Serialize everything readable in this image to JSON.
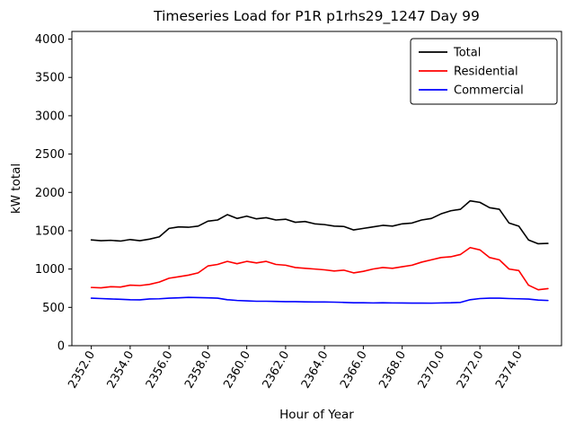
{
  "chart_data": {
    "type": "line",
    "title": "Timeseries Load for P1R p1rhs29_1247  Day 99",
    "xlabel": "Hour of Year",
    "ylabel": "kW total",
    "grid": false,
    "legend_position": "upper right",
    "xlim": [
      2351.0,
      2376.2
    ],
    "ylim": [
      0,
      4100
    ],
    "yticks": [
      0,
      500,
      1000,
      1500,
      2000,
      2500,
      3000,
      3500,
      4000
    ],
    "ytick_labels": [
      "0",
      "500",
      "1000",
      "1500",
      "2000",
      "2500",
      "3000",
      "3500",
      "4000"
    ],
    "xticks": [
      2352,
      2354,
      2356,
      2358,
      2360,
      2362,
      2364,
      2366,
      2368,
      2370,
      2372,
      2374
    ],
    "xtick_labels": [
      "2352.0",
      "2354.0",
      "2356.0",
      "2358.0",
      "2360.0",
      "2362.0",
      "2364.0",
      "2366.0",
      "2368.0",
      "2370.0",
      "2372.0",
      "2374.0"
    ],
    "x_start": 2352.0,
    "x_step": 0.5,
    "series": [
      {
        "name": "Total",
        "color": "#000000",
        "values": [
          1380,
          1370,
          1375,
          1365,
          1385,
          1370,
          1390,
          1420,
          1530,
          1550,
          1545,
          1560,
          1625,
          1640,
          1710,
          1660,
          1690,
          1655,
          1670,
          1640,
          1650,
          1610,
          1620,
          1590,
          1580,
          1560,
          1555,
          1510,
          1530,
          1550,
          1570,
          1560,
          1590,
          1600,
          1640,
          1660,
          1720,
          1760,
          1780,
          1890,
          1870,
          1800,
          1780,
          1600,
          1560,
          1380,
          1330,
          1335
        ]
      },
      {
        "name": "Residential",
        "color": "#ff0000",
        "values": [
          760,
          755,
          770,
          765,
          790,
          785,
          800,
          830,
          880,
          900,
          920,
          950,
          1040,
          1060,
          1100,
          1070,
          1100,
          1080,
          1100,
          1060,
          1050,
          1020,
          1010,
          1000,
          990,
          975,
          985,
          950,
          970,
          1000,
          1020,
          1010,
          1030,
          1050,
          1090,
          1120,
          1150,
          1160,
          1190,
          1280,
          1250,
          1150,
          1120,
          1000,
          980,
          790,
          730,
          745
        ]
      },
      {
        "name": "Commercial",
        "color": "#0000ff",
        "values": [
          620,
          615,
          610,
          605,
          600,
          598,
          610,
          612,
          620,
          625,
          630,
          628,
          625,
          620,
          600,
          590,
          585,
          580,
          580,
          578,
          575,
          575,
          572,
          570,
          570,
          568,
          565,
          560,
          560,
          558,
          560,
          558,
          557,
          556,
          556,
          555,
          558,
          560,
          565,
          600,
          615,
          620,
          620,
          615,
          612,
          608,
          595,
          590
        ]
      }
    ]
  }
}
